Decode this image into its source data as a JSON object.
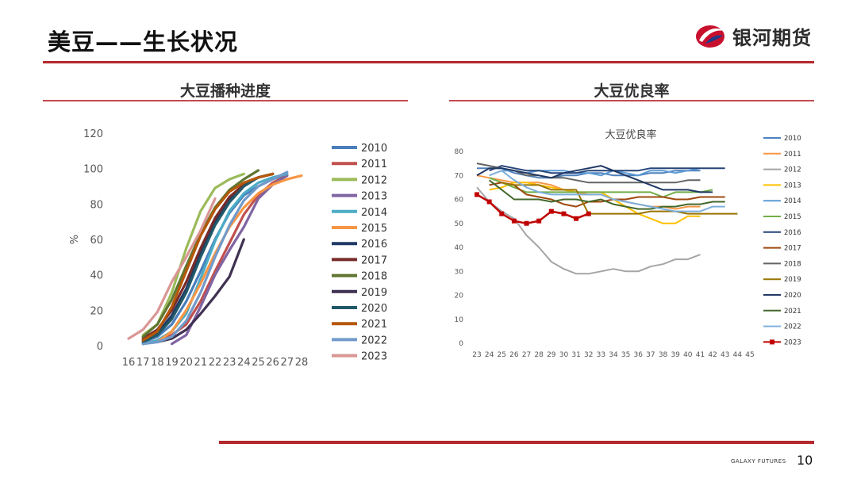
{
  "header": {
    "title": "美豆——生长状况",
    "logo_text": "银河期货"
  },
  "left_panel": {
    "title": "大豆播种进度"
  },
  "right_panel": {
    "title": "大豆优良率"
  },
  "footer": {
    "brand": "GALAXY FUTURES",
    "page": "10"
  },
  "colors": {
    "accent": "#b3282d"
  },
  "chart_data": [
    {
      "type": "line",
      "title": "",
      "xlabel": "",
      "ylabel": "%",
      "xlim": [
        16,
        28
      ],
      "ylim": [
        0,
        120
      ],
      "x_ticks": [
        16,
        17,
        18,
        19,
        20,
        21,
        22,
        23,
        24,
        25,
        26,
        27,
        28
      ],
      "y_ticks": [
        0,
        20,
        40,
        60,
        80,
        100,
        120
      ],
      "legend_position": "right",
      "series": [
        {
          "name": "2010",
          "color": "#4a7ebb",
          "x": [
            17,
            18,
            19,
            20,
            21,
            22,
            23,
            24,
            25,
            26,
            27
          ],
          "values": [
            2,
            5,
            12,
            25,
            42,
            60,
            75,
            85,
            90,
            94,
            97
          ]
        },
        {
          "name": "2011",
          "color": "#c0504d",
          "x": [
            17,
            18,
            19,
            20,
            21,
            22,
            23,
            24,
            25,
            26,
            27
          ],
          "values": [
            1,
            3,
            6,
            12,
            25,
            42,
            58,
            74,
            85,
            92,
            96
          ]
        },
        {
          "name": "2012",
          "color": "#9bbb59",
          "x": [
            17,
            18,
            19,
            20,
            21,
            22,
            23,
            24
          ],
          "values": [
            6,
            12,
            30,
            55,
            76,
            89,
            94,
            97
          ]
        },
        {
          "name": "2013",
          "color": "#8064a2",
          "x": [
            19,
            20,
            21,
            22,
            23,
            24,
            25,
            26,
            27
          ],
          "values": [
            1,
            6,
            22,
            40,
            54,
            67,
            83,
            91,
            96
          ]
        },
        {
          "name": "2014",
          "color": "#4bacc6",
          "x": [
            17,
            18,
            19,
            20,
            21,
            22,
            23,
            24,
            25,
            26,
            27
          ],
          "values": [
            1,
            3,
            8,
            18,
            38,
            59,
            76,
            86,
            92,
            95,
            97
          ]
        },
        {
          "name": "2015",
          "color": "#f79646",
          "x": [
            18,
            19,
            20,
            21,
            22,
            23,
            24,
            25,
            26,
            27,
            28
          ],
          "values": [
            2,
            8,
            20,
            35,
            52,
            67,
            78,
            86,
            91,
            94,
            96
          ]
        },
        {
          "name": "2016",
          "color": "#1f3864",
          "x": [
            17,
            18,
            19,
            20,
            21,
            22,
            23,
            24,
            25,
            26
          ],
          "values": [
            3,
            7,
            17,
            32,
            52,
            70,
            83,
            91,
            95,
            97
          ]
        },
        {
          "name": "2017",
          "color": "#772c2a",
          "x": [
            17,
            18,
            19,
            20,
            21,
            22,
            23,
            24,
            25,
            26
          ],
          "values": [
            4,
            9,
            20,
            36,
            55,
            72,
            84,
            91,
            95,
            97
          ]
        },
        {
          "name": "2018",
          "color": "#5f7530",
          "x": [
            17,
            18,
            19,
            20,
            21,
            22,
            23,
            24,
            25
          ],
          "values": [
            5,
            12,
            26,
            45,
            63,
            78,
            88,
            94,
            99
          ]
        },
        {
          "name": "2019",
          "color": "#3f3151",
          "x": [
            18,
            19,
            20,
            21,
            22,
            23,
            24
          ],
          "values": [
            2,
            4,
            9,
            18,
            28,
            39,
            60
          ]
        },
        {
          "name": "2020",
          "color": "#215968",
          "x": [
            17,
            18,
            19,
            20,
            21,
            22,
            23,
            24,
            25,
            26
          ],
          "values": [
            2,
            6,
            15,
            30,
            50,
            68,
            81,
            90,
            95,
            97
          ]
        },
        {
          "name": "2021",
          "color": "#b65708",
          "x": [
            17,
            18,
            19,
            20,
            21,
            22,
            23,
            24,
            25,
            26
          ],
          "values": [
            3,
            8,
            22,
            42,
            62,
            77,
            87,
            92,
            95,
            97
          ]
        },
        {
          "name": "2022",
          "color": "#729aca",
          "x": [
            17,
            18,
            19,
            20,
            21,
            22,
            23,
            24,
            25,
            26,
            27
          ],
          "values": [
            1,
            2,
            5,
            14,
            30,
            50,
            68,
            82,
            90,
            94,
            98
          ]
        },
        {
          "name": "2023",
          "color": "#d99694",
          "x": [
            16,
            17,
            18,
            19,
            20,
            21,
            22
          ],
          "values": [
            4,
            9,
            19,
            36,
            50,
            65,
            83
          ]
        }
      ]
    },
    {
      "type": "line",
      "title": "大豆优良率",
      "xlabel": "",
      "ylabel": "",
      "x_categories": [
        "23",
        "24",
        "25",
        "26",
        "27",
        "28",
        "29",
        "30",
        "31",
        "32",
        "33",
        "34",
        "35",
        "36",
        "37",
        "38",
        "39",
        "40",
        "41",
        "42",
        "43",
        "44",
        "45"
      ],
      "ylim": [
        0,
        80
      ],
      "y_ticks": [
        0,
        10,
        20,
        30,
        40,
        50,
        60,
        70,
        80
      ],
      "legend_position": "right",
      "series": [
        {
          "name": "2010",
          "color": "#4f81bd",
          "start": 23,
          "values": [
            73,
            73,
            73,
            71,
            70,
            69,
            69,
            70,
            70,
            71,
            71,
            70,
            70,
            70,
            71,
            71,
            72,
            72,
            72
          ]
        },
        {
          "name": "2011",
          "color": "#f79646",
          "start": 23,
          "values": [
            70,
            69,
            68,
            67,
            67,
            67,
            66,
            64,
            63,
            62,
            62,
            60,
            59,
            58,
            57,
            57,
            56,
            57,
            57
          ]
        },
        {
          "name": "2012",
          "color": "#a5a5a5",
          "start": 23,
          "values": [
            65,
            59,
            55,
            52,
            45,
            40,
            34,
            31,
            29,
            29,
            30,
            31,
            30,
            30,
            32,
            33,
            35,
            35,
            37
          ]
        },
        {
          "name": "2013",
          "color": "#ffc000",
          "start": 24,
          "values": [
            64,
            65,
            67,
            67,
            66,
            65,
            64,
            63,
            63,
            63,
            60,
            57,
            54,
            52,
            50,
            50,
            53,
            53
          ]
        },
        {
          "name": "2014",
          "color": "#5b9bd5",
          "start": 25,
          "values": [
            72,
            72,
            71,
            72,
            72,
            72,
            71,
            71,
            70,
            72,
            71,
            70,
            72,
            72,
            71,
            72,
            73
          ]
        },
        {
          "name": "2015",
          "color": "#70ad47",
          "start": 24,
          "values": [
            69,
            67,
            65,
            63,
            63,
            63,
            63,
            63,
            63,
            63,
            63,
            63,
            63,
            63,
            61,
            63,
            63,
            63,
            64
          ]
        },
        {
          "name": "2016",
          "color": "#264478",
          "start": 24,
          "values": [
            72,
            74,
            73,
            72,
            72,
            71,
            71,
            71,
            72,
            72,
            72,
            72,
            72,
            73,
            73,
            73,
            73,
            73,
            73,
            73
          ]
        },
        {
          "name": "2017",
          "color": "#9e480e",
          "start": 24,
          "values": [
            66,
            67,
            66,
            62,
            61,
            60,
            58,
            57,
            59,
            59,
            60,
            60,
            61,
            61,
            61,
            60,
            60,
            61,
            61,
            61
          ]
        },
        {
          "name": "2018",
          "color": "#636363",
          "start": 23,
          "values": [
            75,
            74,
            73,
            72,
            70,
            70,
            69,
            69,
            68,
            67,
            67,
            67,
            67,
            67,
            67,
            67,
            67,
            68,
            68
          ]
        },
        {
          "name": "2019",
          "color": "#997300",
          "start": 25,
          "values": [
            67,
            66,
            66,
            66,
            64,
            64,
            64,
            54,
            54,
            54,
            54,
            54,
            55,
            55,
            55,
            54,
            54,
            54,
            54,
            54
          ]
        },
        {
          "name": "2020",
          "color": "#203864",
          "start": 23,
          "values": [
            70,
            73,
            73,
            72,
            71,
            70,
            69,
            71,
            72,
            73,
            74,
            72,
            70,
            68,
            66,
            64,
            64,
            64,
            63,
            63
          ]
        },
        {
          "name": "2021",
          "color": "#43682b",
          "start": 24,
          "values": [
            68,
            64,
            60,
            60,
            60,
            59,
            60,
            60,
            59,
            60,
            58,
            57,
            56,
            56,
            57,
            57,
            58,
            58,
            59,
            59
          ]
        },
        {
          "name": "2022",
          "color": "#7cafdd",
          "start": 24,
          "values": [
            70,
            72,
            68,
            65,
            63,
            62,
            62,
            62,
            62,
            62,
            60,
            59,
            58,
            57,
            56,
            55,
            55,
            55,
            57,
            57
          ]
        },
        {
          "name": "2023",
          "color": "#c00000",
          "start": 23,
          "values": [
            62,
            59,
            54,
            51,
            50,
            51,
            55,
            54,
            52,
            54
          ]
        }
      ]
    }
  ]
}
